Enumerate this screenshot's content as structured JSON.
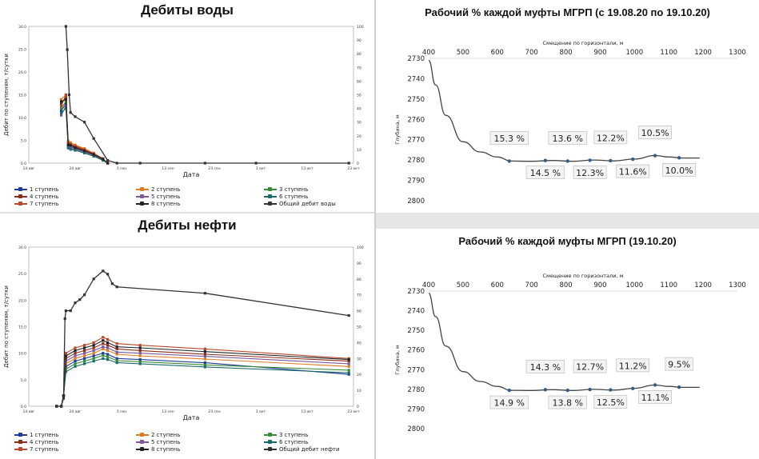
{
  "chart_data": [
    {
      "id": "water",
      "type": "line",
      "title": "Дебиты воды",
      "xlabel": "Дата",
      "ylabel": "Дебит по ступеням, т/сутки",
      "ylim": [
        0,
        30
      ],
      "y2lim": [
        0,
        100
      ],
      "yticks": [
        "0.0",
        "5.0",
        "10.0",
        "15.0",
        "20.0",
        "25.0",
        "30.0"
      ],
      "y2ticks": [
        "0",
        "10",
        "20",
        "30",
        "40",
        "50",
        "60",
        "70",
        "80",
        "90",
        "100"
      ],
      "xticks": [
        "14 авг",
        "24 авг",
        "3 сен",
        "13 сен",
        "23 сен",
        "3 окт",
        "13 окт",
        "23 окт"
      ],
      "x_day_range": [
        0,
        70
      ],
      "series": [
        {
          "name": "1 ступень",
          "color": "#1f3b9b",
          "x": [
            7,
            8,
            8.5,
            9,
            10,
            12,
            14,
            16,
            17
          ],
          "y": [
            11.5,
            13,
            4,
            3.6,
            3.2,
            2.6,
            1.8,
            0.8,
            0
          ]
        },
        {
          "name": "2 ступень",
          "color": "#e07b20",
          "x": [
            7,
            8,
            8.5,
            9,
            10,
            12,
            14,
            16,
            17
          ],
          "y": [
            14,
            15,
            4.8,
            4.5,
            4,
            3.2,
            2.2,
            1,
            0
          ]
        },
        {
          "name": "3 ступень",
          "color": "#3a8a3a",
          "x": [
            7,
            8,
            8.5,
            9,
            10,
            12,
            14,
            16,
            17
          ],
          "y": [
            12,
            13.5,
            3.5,
            3.3,
            3,
            2.4,
            1.6,
            0.7,
            0
          ]
        },
        {
          "name": "4 ступень",
          "color": "#8b2d1a",
          "x": [
            7,
            8,
            8.5,
            9,
            10,
            12,
            14,
            16,
            17
          ],
          "y": [
            13,
            14.5,
            4.2,
            4,
            3.6,
            2.9,
            2,
            0.9,
            0
          ]
        },
        {
          "name": "5 ступень",
          "color": "#7a5a9a",
          "x": [
            7,
            8,
            8.5,
            9,
            10,
            12,
            14,
            16,
            17
          ],
          "y": [
            10.5,
            12.5,
            3.8,
            3.5,
            3.1,
            2.5,
            1.7,
            0.8,
            0
          ]
        },
        {
          "name": "6 ступень",
          "color": "#1d6a6a",
          "x": [
            7,
            8,
            8.5,
            9,
            10,
            12,
            14,
            16,
            17
          ],
          "y": [
            11,
            12,
            3.3,
            3,
            2.8,
            2.2,
            1.5,
            0.6,
            0
          ]
        },
        {
          "name": "7 ступень",
          "color": "#b84a2a",
          "x": [
            7,
            8,
            8.5,
            9,
            10,
            12,
            14,
            16,
            17
          ],
          "y": [
            12.5,
            15,
            4.5,
            4.2,
            3.8,
            3,
            2.1,
            1,
            0
          ]
        },
        {
          "name": "8 ступень",
          "color": "#222222",
          "x": [
            7,
            8,
            8.5,
            9,
            10,
            12,
            14,
            16,
            17
          ],
          "y": [
            13.5,
            14,
            4,
            3.9,
            3.4,
            2.7,
            1.9,
            0.9,
            0
          ]
        },
        {
          "name": "Общий дебит воды",
          "color": "#333333",
          "axis": "y2",
          "x": [
            8,
            8.3,
            8.7,
            9,
            10,
            12,
            14,
            17,
            19,
            24,
            38,
            49,
            69
          ],
          "y": [
            100,
            83,
            50,
            37,
            34,
            30,
            18,
            2,
            0,
            0,
            0,
            0,
            0
          ]
        }
      ]
    },
    {
      "id": "oil",
      "type": "line",
      "title": "Дебиты нефти",
      "xlabel": "Дата",
      "ylabel": "Дебит по ступеням, т/сутки",
      "ylim": [
        0,
        30
      ],
      "y2lim": [
        0,
        100
      ],
      "yticks": [
        "0.0",
        "5.0",
        "10.0",
        "15.0",
        "20.0",
        "25.0",
        "30.0"
      ],
      "y2ticks": [
        "0",
        "10",
        "20",
        "30",
        "40",
        "50",
        "60",
        "70",
        "80",
        "90",
        "100"
      ],
      "xticks": [
        "14 авг",
        "24 авг",
        "3 сен",
        "13 сен",
        "23 сен",
        "3 окт",
        "13 окт",
        "23 окт"
      ],
      "x_day_range": [
        0,
        70
      ],
      "series": [
        {
          "name": "1 ступень",
          "color": "#1f3b9b",
          "x": [
            6,
            7,
            7.5,
            8,
            10,
            12,
            14,
            16,
            17,
            19,
            24,
            38,
            69
          ],
          "y": [
            0,
            0,
            2,
            7.5,
            8.5,
            9,
            9.5,
            10,
            9.8,
            9,
            8.8,
            8.2,
            6
          ]
        },
        {
          "name": "2 ступень",
          "color": "#e07b20",
          "x": [
            6,
            7,
            7.5,
            8,
            10,
            12,
            14,
            16,
            17,
            19,
            24,
            38,
            69
          ],
          "y": [
            0,
            0,
            2,
            8,
            9,
            9.5,
            10,
            10.8,
            10.5,
            9.8,
            9.5,
            8.9,
            7.5
          ]
        },
        {
          "name": "3 ступень",
          "color": "#3a8a3a",
          "x": [
            6,
            7,
            7.5,
            8,
            10,
            12,
            14,
            16,
            17,
            19,
            24,
            38,
            69
          ],
          "y": [
            0,
            0,
            2,
            7,
            8,
            8.5,
            9,
            9.6,
            9.3,
            8.6,
            8.4,
            7.8,
            6.8
          ]
        },
        {
          "name": "4 ступень",
          "color": "#8b2d1a",
          "x": [
            6,
            7,
            7.5,
            8,
            10,
            12,
            14,
            16,
            17,
            19,
            24,
            38,
            69
          ],
          "y": [
            0,
            0,
            2,
            9,
            10,
            10.5,
            11,
            11.8,
            11.5,
            10.8,
            10.5,
            9.8,
            8.5
          ]
        },
        {
          "name": "5 ступень",
          "color": "#7a5a9a",
          "x": [
            6,
            7,
            7.5,
            8,
            10,
            12,
            14,
            16,
            17,
            19,
            24,
            38,
            69
          ],
          "y": [
            0,
            0,
            2,
            8.5,
            9.5,
            10,
            10.5,
            11.2,
            11,
            10.2,
            10,
            9.4,
            8
          ]
        },
        {
          "name": "6 ступень",
          "color": "#1d6a6a",
          "x": [
            6,
            7,
            7.5,
            8,
            10,
            12,
            14,
            16,
            17,
            19,
            24,
            38,
            69
          ],
          "y": [
            0,
            0,
            2,
            6.5,
            7.5,
            8,
            8.5,
            9,
            8.8,
            8.2,
            8,
            7.4,
            6.3
          ]
        },
        {
          "name": "7 ступень",
          "color": "#b84a2a",
          "x": [
            6,
            7,
            7.5,
            8,
            10,
            12,
            14,
            16,
            17,
            19,
            24,
            38,
            69
          ],
          "y": [
            0,
            0,
            2,
            10,
            11,
            11.5,
            12,
            13,
            12.6,
            11.8,
            11.5,
            10.8,
            9
          ]
        },
        {
          "name": "8 ступень",
          "color": "#222222",
          "x": [
            6,
            7,
            7.5,
            8,
            10,
            12,
            14,
            16,
            17,
            19,
            24,
            38,
            69
          ],
          "y": [
            0,
            0,
            2,
            9.5,
            10.5,
            11,
            11.5,
            12.4,
            12,
            11.2,
            11,
            10.3,
            8.8
          ]
        },
        {
          "name": "Общий дебит нефти",
          "color": "#333333",
          "axis": "y2",
          "x": [
            6,
            7,
            7.5,
            7.8,
            8,
            9,
            10,
            11,
            12,
            14,
            16,
            17,
            18,
            19,
            38,
            69
          ],
          "y": [
            0,
            0,
            5,
            55,
            60,
            60,
            65,
            67,
            70,
            80,
            85,
            83,
            77,
            75,
            71,
            57
          ]
        }
      ]
    },
    {
      "id": "mgrp1",
      "type": "line",
      "title": "Рабочий % каждой муфты МГРП (с 19.08.20 по 19.10.20)",
      "xlabel": "Смещение по горизонтали, м",
      "ylabel": "Глубина, м",
      "xlim": [
        400,
        1300
      ],
      "ylim": [
        2730,
        2800
      ],
      "xticks": [
        "400",
        "500",
        "600",
        "700",
        "800",
        "900",
        "1000",
        "1100",
        "1200",
        "1300"
      ],
      "yticks": [
        "2730",
        "2740",
        "2750",
        "2760",
        "2770",
        "2780",
        "2790",
        "2800"
      ],
      "trajectory": {
        "x": [
          400,
          420,
          450,
          500,
          550,
          600,
          640,
          700,
          760,
          820,
          880,
          940,
          1000,
          1060,
          1100,
          1140,
          1190
        ],
        "y": [
          2731,
          2743,
          2758,
          2771,
          2776,
          2778.5,
          2780.5,
          2780.6,
          2780.2,
          2780.6,
          2780,
          2780.4,
          2779.5,
          2777.8,
          2778.5,
          2779,
          2779
        ]
      },
      "points": [
        {
          "x": 635,
          "y": 2780.5,
          "label": "15.3 %",
          "pos": "above"
        },
        {
          "x": 740,
          "y": 2780.2,
          "label": "14.5 %",
          "pos": "below"
        },
        {
          "x": 805,
          "y": 2780.5,
          "label": "13.6 %",
          "pos": "above"
        },
        {
          "x": 870,
          "y": 2780.1,
          "label": "12.3%",
          "pos": "below"
        },
        {
          "x": 930,
          "y": 2780.3,
          "label": "12.2%",
          "pos": "above"
        },
        {
          "x": 995,
          "y": 2779.6,
          "label": "11.6%",
          "pos": "below"
        },
        {
          "x": 1060,
          "y": 2777.8,
          "label": "10.5%",
          "pos": "above"
        },
        {
          "x": 1130,
          "y": 2778.9,
          "label": "10.0%",
          "pos": "below"
        }
      ]
    },
    {
      "id": "mgrp2",
      "type": "line",
      "title": "Рабочий % каждой муфты МГРП (19.10.20)",
      "xlabel": "Смещение по горизонтали, м",
      "ylabel": "Глубина, м",
      "xlim": [
        400,
        1300
      ],
      "ylim": [
        2730,
        2800
      ],
      "xticks": [
        "400",
        "500",
        "600",
        "700",
        "800",
        "900",
        "1000",
        "1100",
        "1200",
        "1300"
      ],
      "yticks": [
        "2730",
        "2740",
        "2750",
        "2760",
        "2770",
        "2780",
        "2790",
        "2800"
      ],
      "trajectory": {
        "x": [
          400,
          420,
          450,
          500,
          550,
          600,
          640,
          700,
          760,
          820,
          880,
          940,
          1000,
          1060,
          1100,
          1140,
          1190
        ],
        "y": [
          2731,
          2743,
          2758,
          2771,
          2776,
          2778.5,
          2780.5,
          2780.6,
          2780.2,
          2780.6,
          2780,
          2780.4,
          2779.5,
          2777.8,
          2778.5,
          2779,
          2779
        ]
      },
      "points": [
        {
          "x": 635,
          "y": 2780.5,
          "label": "14.9 %",
          "pos": "below"
        },
        {
          "x": 740,
          "y": 2780.2,
          "label": "14.3 %",
          "pos": "above"
        },
        {
          "x": 805,
          "y": 2780.5,
          "label": "13.8 %",
          "pos": "below"
        },
        {
          "x": 870,
          "y": 2780.1,
          "label": "12.7%",
          "pos": "above"
        },
        {
          "x": 930,
          "y": 2780.3,
          "label": "12.5%",
          "pos": "below"
        },
        {
          "x": 995,
          "y": 2779.6,
          "label": "11.2%",
          "pos": "above"
        },
        {
          "x": 1060,
          "y": 2777.8,
          "label": "11.1%",
          "pos": "below"
        },
        {
          "x": 1130,
          "y": 2778.9,
          "label": "9.5%",
          "pos": "above"
        }
      ]
    }
  ],
  "legend_water": [
    "1 ступень",
    "2 ступень",
    "3 ступень",
    "4 ступень",
    "5 ступень",
    "6 ступень",
    "7 ступень",
    "8 ступень",
    "Общий дебит воды"
  ],
  "legend_oil": [
    "1 ступень",
    "2 ступень",
    "3 ступень",
    "4 ступень",
    "5 ступень",
    "6 ступень",
    "7 ступень",
    "8 ступень",
    "Общий дебит нефти"
  ]
}
